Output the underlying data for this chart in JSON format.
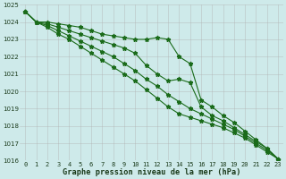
{
  "xlabel": "Graphe pression niveau de la mer (hPa)",
  "x": [
    0,
    1,
    2,
    3,
    4,
    5,
    6,
    7,
    8,
    9,
    10,
    11,
    12,
    13,
    14,
    15,
    16,
    17,
    18,
    19,
    20,
    21,
    22,
    23
  ],
  "lines": [
    [
      1024.6,
      1024.0,
      1023.7,
      1023.3,
      1023.0,
      1022.6,
      1022.2,
      1021.8,
      1021.4,
      1021.0,
      1020.6,
      1020.1,
      1019.6,
      1019.1,
      1018.7,
      1018.5,
      1018.3,
      1018.1,
      1017.9,
      1017.6,
      1017.3,
      1016.9,
      1016.5,
      1016.1
    ],
    [
      1024.6,
      1024.0,
      1023.8,
      1023.5,
      1023.2,
      1022.9,
      1022.6,
      1022.3,
      1022.0,
      1021.6,
      1021.2,
      1020.7,
      1020.3,
      1019.8,
      1019.4,
      1019.0,
      1018.7,
      1018.4,
      1018.1,
      1017.8,
      1017.4,
      1017.0,
      1016.6,
      1016.1
    ],
    [
      1024.6,
      1024.0,
      1023.9,
      1023.7,
      1023.5,
      1023.3,
      1023.1,
      1022.9,
      1022.7,
      1022.5,
      1022.2,
      1021.5,
      1021.0,
      1020.6,
      1020.7,
      1020.5,
      1019.1,
      1018.6,
      1018.3,
      1017.9,
      1017.5,
      1017.1,
      1016.7,
      1016.1
    ],
    [
      1024.6,
      1024.0,
      1024.0,
      1023.9,
      1023.8,
      1023.7,
      1023.5,
      1023.3,
      1023.2,
      1023.1,
      1023.0,
      1023.0,
      1023.1,
      1023.0,
      1022.0,
      1021.6,
      1019.5,
      1019.1,
      1018.6,
      1018.2,
      1017.7,
      1017.2,
      1016.7,
      1016.1
    ]
  ],
  "line_colors": [
    "#1a6b1a",
    "#1a6b1a",
    "#1a6b1a",
    "#1a6b1a"
  ],
  "marker": "*",
  "markersize": 3.5,
  "ylim": [
    1016,
    1025
  ],
  "yticks": [
    1016,
    1017,
    1018,
    1019,
    1020,
    1021,
    1022,
    1023,
    1024,
    1025
  ],
  "bg_color": "#ceeaea",
  "grid_color": "#b0b0b0",
  "linewidth": 0.8
}
